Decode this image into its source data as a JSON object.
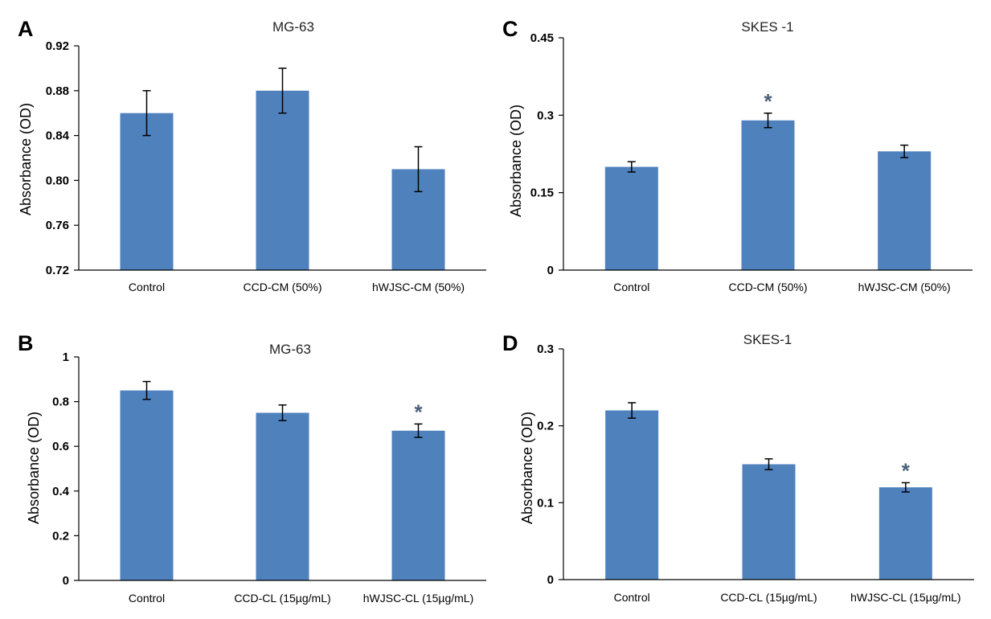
{
  "colors": {
    "bar": "#4f81bd",
    "axis": "#000000",
    "significance": "#4a5f7a"
  },
  "chart_data": [
    {
      "panel": "A",
      "type": "bar",
      "title": "MG-63",
      "ylabel": "Absorbance (OD)",
      "xlabel": "",
      "categories": [
        "Control",
        "CCD-CM (50%)",
        "hWJSC-CM (50%)"
      ],
      "values": [
        0.86,
        0.88,
        0.81
      ],
      "errors": [
        0.02,
        0.02,
        0.02
      ],
      "significant": [
        false,
        false,
        false
      ],
      "ylim": [
        0.72,
        0.92
      ],
      "yticks": [
        0.72,
        0.76,
        0.8,
        0.84,
        0.88,
        0.92
      ],
      "ytick_labels": [
        "0.72",
        "0.76",
        "0.80",
        "0.84",
        "0.88",
        "0.92"
      ],
      "grid": false,
      "legend": "none"
    },
    {
      "panel": "B",
      "type": "bar",
      "title": "MG-63",
      "ylabel": "Absorbance (OD)",
      "xlabel": "",
      "categories": [
        "Control",
        "CCD-CL (15µg/mL)",
        "hWJSC-CL (15µg/mL)"
      ],
      "values": [
        0.85,
        0.75,
        0.67
      ],
      "errors": [
        0.04,
        0.035,
        0.03
      ],
      "significant": [
        false,
        false,
        true
      ],
      "ylim": [
        0,
        1
      ],
      "yticks": [
        0,
        0.2,
        0.4,
        0.6,
        0.8,
        1
      ],
      "ytick_labels": [
        "0",
        "0.2",
        "0.4",
        "0.6",
        "0.8",
        "1"
      ],
      "grid": false,
      "legend": "none"
    },
    {
      "panel": "C",
      "type": "bar",
      "title": "SKES -1",
      "ylabel": "Absorbance (OD)",
      "xlabel": "",
      "categories": [
        "Control",
        "CCD-CM (50%)",
        "hWJSC-CM (50%)"
      ],
      "values": [
        0.2,
        0.29,
        0.23
      ],
      "errors": [
        0.01,
        0.014,
        0.012
      ],
      "significant": [
        false,
        true,
        false
      ],
      "ylim": [
        0,
        0.45
      ],
      "yticks": [
        0,
        0.15,
        0.3,
        0.45
      ],
      "ytick_labels": [
        "0",
        "0.15",
        "0.3",
        "0.45"
      ],
      "grid": false,
      "legend": "none"
    },
    {
      "panel": "D",
      "type": "bar",
      "title": "SKES-1",
      "ylabel": "Absorbance (OD)",
      "xlabel": "",
      "categories": [
        "Control",
        "CCD-CL (15µg/mL)",
        "hWJSC-CL (15µg/mL)"
      ],
      "values": [
        0.22,
        0.15,
        0.12
      ],
      "errors": [
        0.01,
        0.007,
        0.006
      ],
      "significant": [
        false,
        false,
        true
      ],
      "ylim": [
        0,
        0.3
      ],
      "yticks": [
        0,
        0.1,
        0.2,
        0.3
      ],
      "ytick_labels": [
        "0",
        "0.1",
        "0.2",
        "0.3"
      ],
      "grid": false,
      "legend": "none"
    }
  ],
  "significance_marker": "*"
}
